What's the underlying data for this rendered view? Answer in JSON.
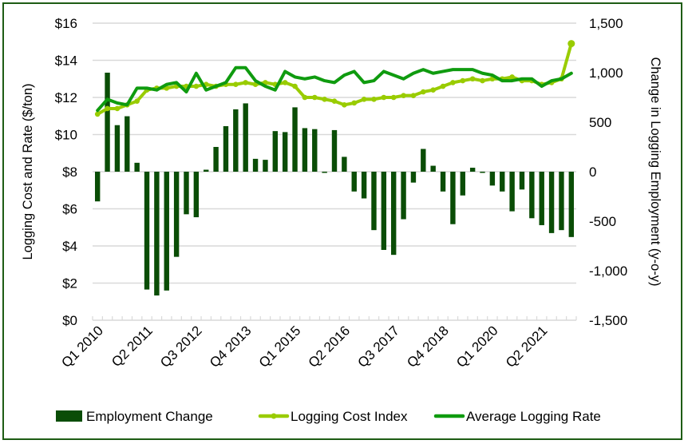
{
  "chart_data": {
    "type": "bar+line",
    "title": "",
    "xlabel": "",
    "ylabel_left": "Logging Cost and Rate ($/ton)",
    "ylabel_right": "Change in Logging Employment (y-o-y)",
    "ylim_left": [
      0,
      16
    ],
    "ylim_right": [
      -1500,
      1500
    ],
    "left_ticks": [
      "$0",
      "$2",
      "$4",
      "$6",
      "$8",
      "$10",
      "$12",
      "$14",
      "$16"
    ],
    "left_tick_values": [
      0,
      2,
      4,
      6,
      8,
      10,
      12,
      14,
      16
    ],
    "right_ticks": [
      "-1,500",
      "-1,000",
      "-500",
      "0",
      "500",
      "1,000",
      "1,500"
    ],
    "right_tick_values": [
      -1500,
      -1000,
      -500,
      0,
      500,
      1000,
      1500
    ],
    "grid": true,
    "legend_position": "bottom",
    "x_tick_labels": [
      "Q1 2010",
      "Q2 2011",
      "Q3 2012",
      "Q4 2013",
      "Q1 2015",
      "Q2 2016",
      "Q3 2017",
      "Q4 2018",
      "Q1 2020",
      "Q2 2021"
    ],
    "x_tick_label_indices": [
      0,
      5,
      10,
      15,
      20,
      25,
      30,
      35,
      40,
      45
    ],
    "categories": [
      "Q1 2010",
      "Q2 2010",
      "Q3 2010",
      "Q4 2010",
      "Q1 2011",
      "Q2 2011",
      "Q3 2011",
      "Q4 2011",
      "Q1 2012",
      "Q2 2012",
      "Q3 2012",
      "Q4 2012",
      "Q1 2013",
      "Q2 2013",
      "Q3 2013",
      "Q4 2013",
      "Q1 2014",
      "Q2 2014",
      "Q3 2014",
      "Q4 2014",
      "Q1 2015",
      "Q2 2015",
      "Q3 2015",
      "Q4 2015",
      "Q1 2016",
      "Q2 2016",
      "Q3 2016",
      "Q4 2016",
      "Q1 2017",
      "Q2 2017",
      "Q3 2017",
      "Q4 2017",
      "Q1 2018",
      "Q2 2018",
      "Q3 2018",
      "Q4 2018",
      "Q1 2019",
      "Q2 2019",
      "Q3 2019",
      "Q4 2019",
      "Q1 2020",
      "Q2 2020",
      "Q3 2020",
      "Q4 2020",
      "Q1 2021",
      "Q2 2021",
      "Q3 2021",
      "Q4 2021",
      "Q1 2022"
    ],
    "series": [
      {
        "name": "Employment Change",
        "type": "bar",
        "axis": "right",
        "color": "#0a4d06",
        "values": [
          -300,
          1000,
          470,
          560,
          90,
          -1190,
          -1250,
          -1200,
          -860,
          -430,
          -460,
          20,
          250,
          460,
          630,
          690,
          130,
          120,
          410,
          400,
          650,
          440,
          430,
          -10,
          420,
          150,
          -200,
          -270,
          -590,
          -790,
          -840,
          -480,
          -110,
          230,
          60,
          -200,
          -530,
          -240,
          40,
          -10,
          -140,
          -200,
          -400,
          -180,
          -470,
          -540,
          -620,
          -590,
          -660
        ]
      },
      {
        "name": "Logging Cost Index",
        "type": "line",
        "axis": "left",
        "color": "#99cc00",
        "markers": true,
        "values": [
          11.1,
          11.4,
          11.4,
          11.6,
          11.8,
          12.4,
          12.5,
          12.5,
          12.6,
          12.6,
          12.6,
          12.7,
          12.6,
          12.7,
          12.7,
          12.8,
          12.7,
          12.8,
          12.7,
          12.8,
          12.6,
          12.0,
          12.0,
          11.9,
          11.8,
          11.6,
          11.7,
          11.9,
          11.9,
          12.0,
          12.0,
          12.1,
          12.1,
          12.3,
          12.4,
          12.6,
          12.8,
          12.9,
          13.0,
          12.9,
          13.0,
          13.0,
          13.1,
          12.9,
          12.9,
          12.7,
          12.8,
          13.0,
          14.9
        ]
      },
      {
        "name": "Average Logging Rate",
        "type": "line",
        "axis": "left",
        "color": "#0f9b0f",
        "markers": false,
        "values": [
          11.3,
          11.9,
          11.7,
          11.6,
          12.5,
          12.5,
          12.4,
          12.7,
          12.8,
          12.3,
          13.3,
          12.4,
          12.6,
          12.8,
          13.6,
          13.6,
          12.9,
          12.6,
          12.4,
          13.4,
          13.1,
          13.0,
          13.1,
          12.9,
          12.8,
          13.2,
          13.4,
          12.8,
          12.9,
          13.4,
          13.2,
          13.0,
          13.3,
          13.5,
          13.3,
          13.4,
          13.5,
          13.5,
          13.5,
          13.3,
          13.2,
          12.9,
          12.9,
          13.0,
          13.0,
          12.6,
          12.9,
          13.0,
          13.3
        ]
      }
    ],
    "legend": [
      {
        "label": "Employment Change",
        "symbol": "bar",
        "color": "#0a4d06"
      },
      {
        "label": "Logging Cost Index",
        "symbol": "line-marker",
        "color": "#99cc00"
      },
      {
        "label": "Average Logging Rate",
        "symbol": "line",
        "color": "#0f9b0f"
      }
    ]
  }
}
